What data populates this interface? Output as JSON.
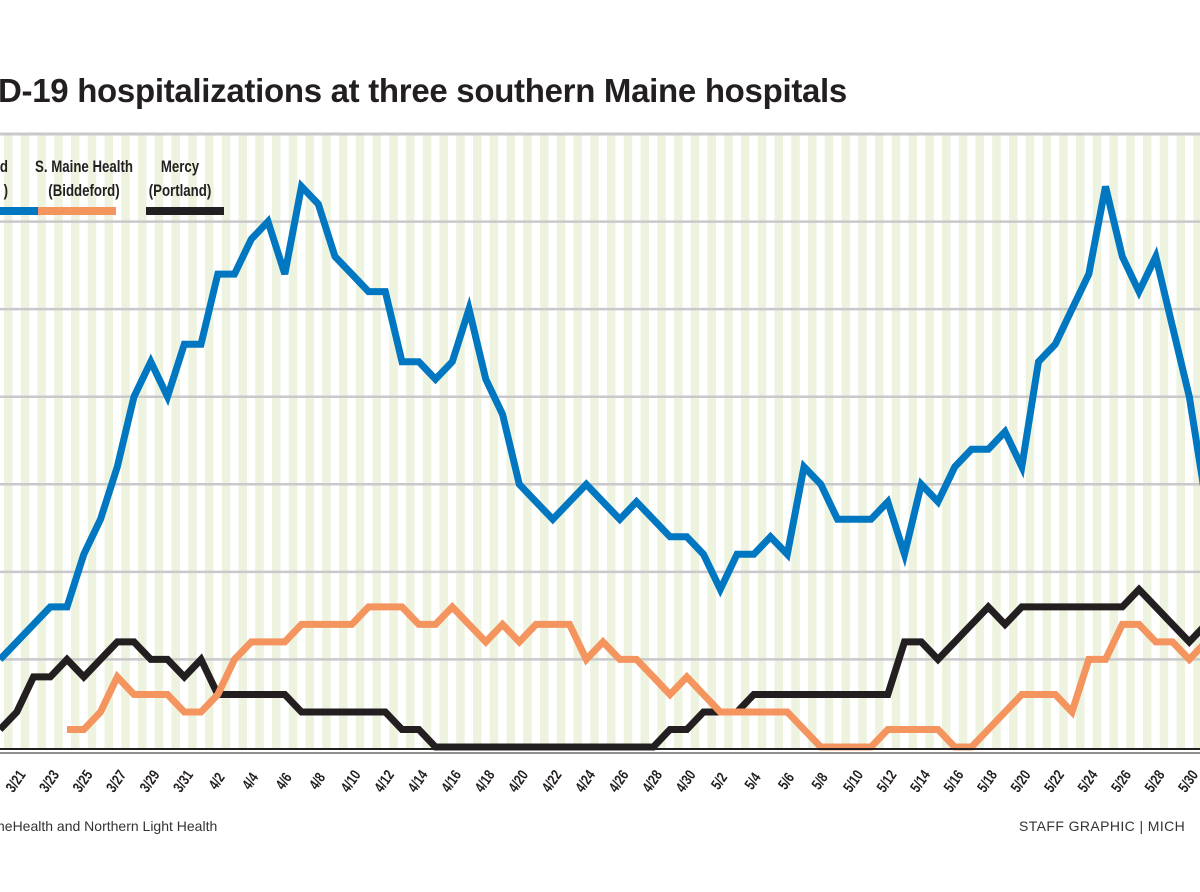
{
  "chart_data": {
    "type": "line",
    "title": "D-19 hospitalizations at three southern Maine hospitals",
    "start_date": "3/20",
    "x_tick_labels": [
      "3/21",
      "3/23",
      "3/25",
      "3/27",
      "3/29",
      "3/31",
      "4/2",
      "4/4",
      "4/6",
      "4/8",
      "4/10",
      "4/12",
      "4/14",
      "4/16",
      "4/18",
      "4/20",
      "4/22",
      "4/24",
      "4/26",
      "4/28",
      "4/30",
      "5/2",
      "5/4",
      "5/6",
      "5/8",
      "5/10",
      "5/12",
      "5/14",
      "5/16",
      "5/18",
      "5/20",
      "5/22",
      "5/24",
      "5/26",
      "5/28",
      "5/30"
    ],
    "ylim": [
      0,
      35
    ],
    "y_grid_step": 5,
    "grid": true,
    "legend_position": "top-left",
    "series": [
      {
        "name": "d\n)",
        "label_lines": [
          "d",
          ")"
        ],
        "color": "#0077c0",
        "values": [
          5,
          6,
          7,
          8,
          8,
          11,
          13,
          16,
          20,
          22,
          20,
          23,
          23,
          27,
          27,
          29,
          30,
          27,
          32,
          31,
          28,
          27,
          26,
          26,
          22,
          22,
          21,
          22,
          25,
          21,
          19,
          15,
          14,
          13,
          14,
          15,
          14,
          13,
          14,
          13,
          12,
          12,
          11,
          9,
          11,
          11,
          12,
          11,
          16,
          15,
          13,
          13,
          13,
          14,
          11,
          15,
          14,
          16,
          17,
          17,
          18,
          16,
          22,
          23,
          25,
          27,
          32,
          28,
          26,
          28,
          24,
          20,
          14
        ]
      },
      {
        "name": "S. Maine Health (Biddeford)",
        "label_lines": [
          "S. Maine Health",
          "(Biddeford)"
        ],
        "color": "#f4955f",
        "values": [
          null,
          null,
          null,
          null,
          1,
          1,
          2,
          4,
          3,
          3,
          3,
          2,
          2,
          3,
          5,
          6,
          6,
          6,
          7,
          7,
          7,
          7,
          8,
          8,
          8,
          7,
          7,
          8,
          7,
          6,
          7,
          6,
          7,
          7,
          7,
          5,
          6,
          5,
          5,
          4,
          3,
          4,
          3,
          2,
          2,
          2,
          2,
          2,
          1,
          0,
          0,
          0,
          0,
          1,
          1,
          1,
          1,
          0,
          0,
          1,
          2,
          3,
          3,
          3,
          2,
          5,
          5,
          7,
          7,
          6,
          6,
          5,
          6
        ]
      },
      {
        "name": "Mercy (Portland)",
        "label_lines": [
          "Mercy",
          "(Portland)"
        ],
        "color": "#231f20",
        "values": [
          1,
          2,
          4,
          4,
          5,
          4,
          5,
          6,
          6,
          5,
          5,
          4,
          5,
          3,
          3,
          3,
          3,
          3,
          2,
          2,
          2,
          2,
          2,
          2,
          1,
          1,
          0,
          0,
          0,
          0,
          0,
          0,
          0,
          0,
          0,
          0,
          0,
          0,
          0,
          0,
          1,
          1,
          2,
          2,
          2,
          3,
          3,
          3,
          3,
          3,
          3,
          3,
          3,
          3,
          6,
          6,
          5,
          6,
          7,
          8,
          7,
          8,
          8,
          8,
          8,
          8,
          8,
          8,
          9,
          8,
          7,
          6,
          7
        ]
      }
    ]
  },
  "footer": {
    "source": "neHealth and Northern Light Health",
    "credit": "STAFF GRAPHIC | MICH"
  }
}
